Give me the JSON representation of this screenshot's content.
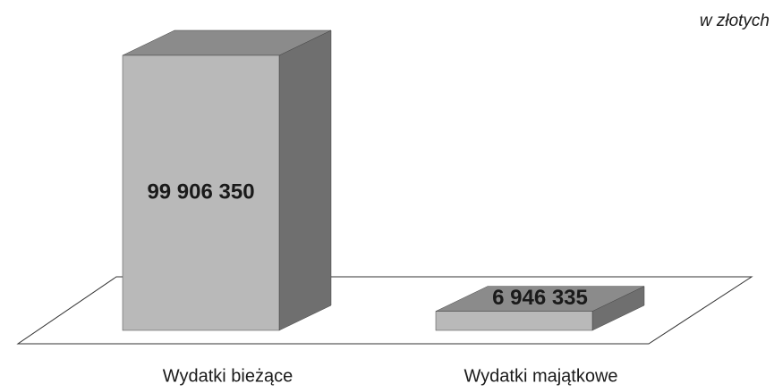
{
  "chart_data": {
    "type": "bar3d",
    "annotation": "w złotych",
    "categories": [
      "Wydatki bieżące",
      "Wydatki majątkowe"
    ],
    "values": [
      99906350,
      6946335
    ],
    "value_labels": [
      "99 906 350",
      "6 946 335"
    ],
    "color": "#b9b9b9"
  }
}
